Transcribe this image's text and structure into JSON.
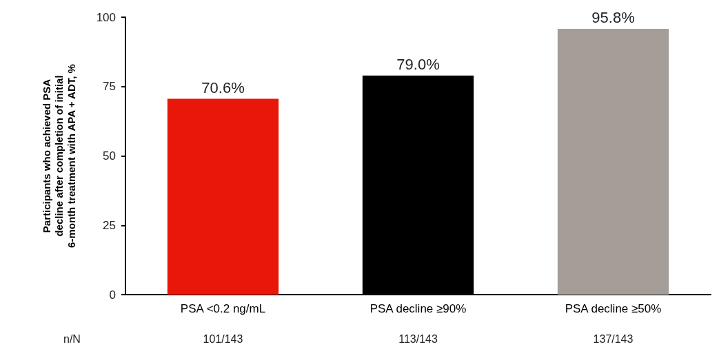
{
  "chart_data": {
    "type": "bar",
    "ylabel": "Participants who achieved PSA decline after completion of initial 6-month treatment with APA + ADT, %",
    "categories": [
      "PSA <0.2 ng/mL",
      "PSA decline ≥90%",
      "PSA decline ≥50%"
    ],
    "values": [
      70.6,
      79.0,
      95.8
    ],
    "colors": [
      "#e8170a",
      "#000000",
      "#a59e98"
    ],
    "value_labels": [
      "70.6%",
      "79.0%",
      "95.8%"
    ],
    "ylim": [
      0,
      100
    ],
    "yticks": [
      0,
      25,
      50,
      75,
      100
    ],
    "grid": false,
    "annotations": [
      "n/N",
      "101/143",
      "113/143",
      "137/143"
    ]
  }
}
